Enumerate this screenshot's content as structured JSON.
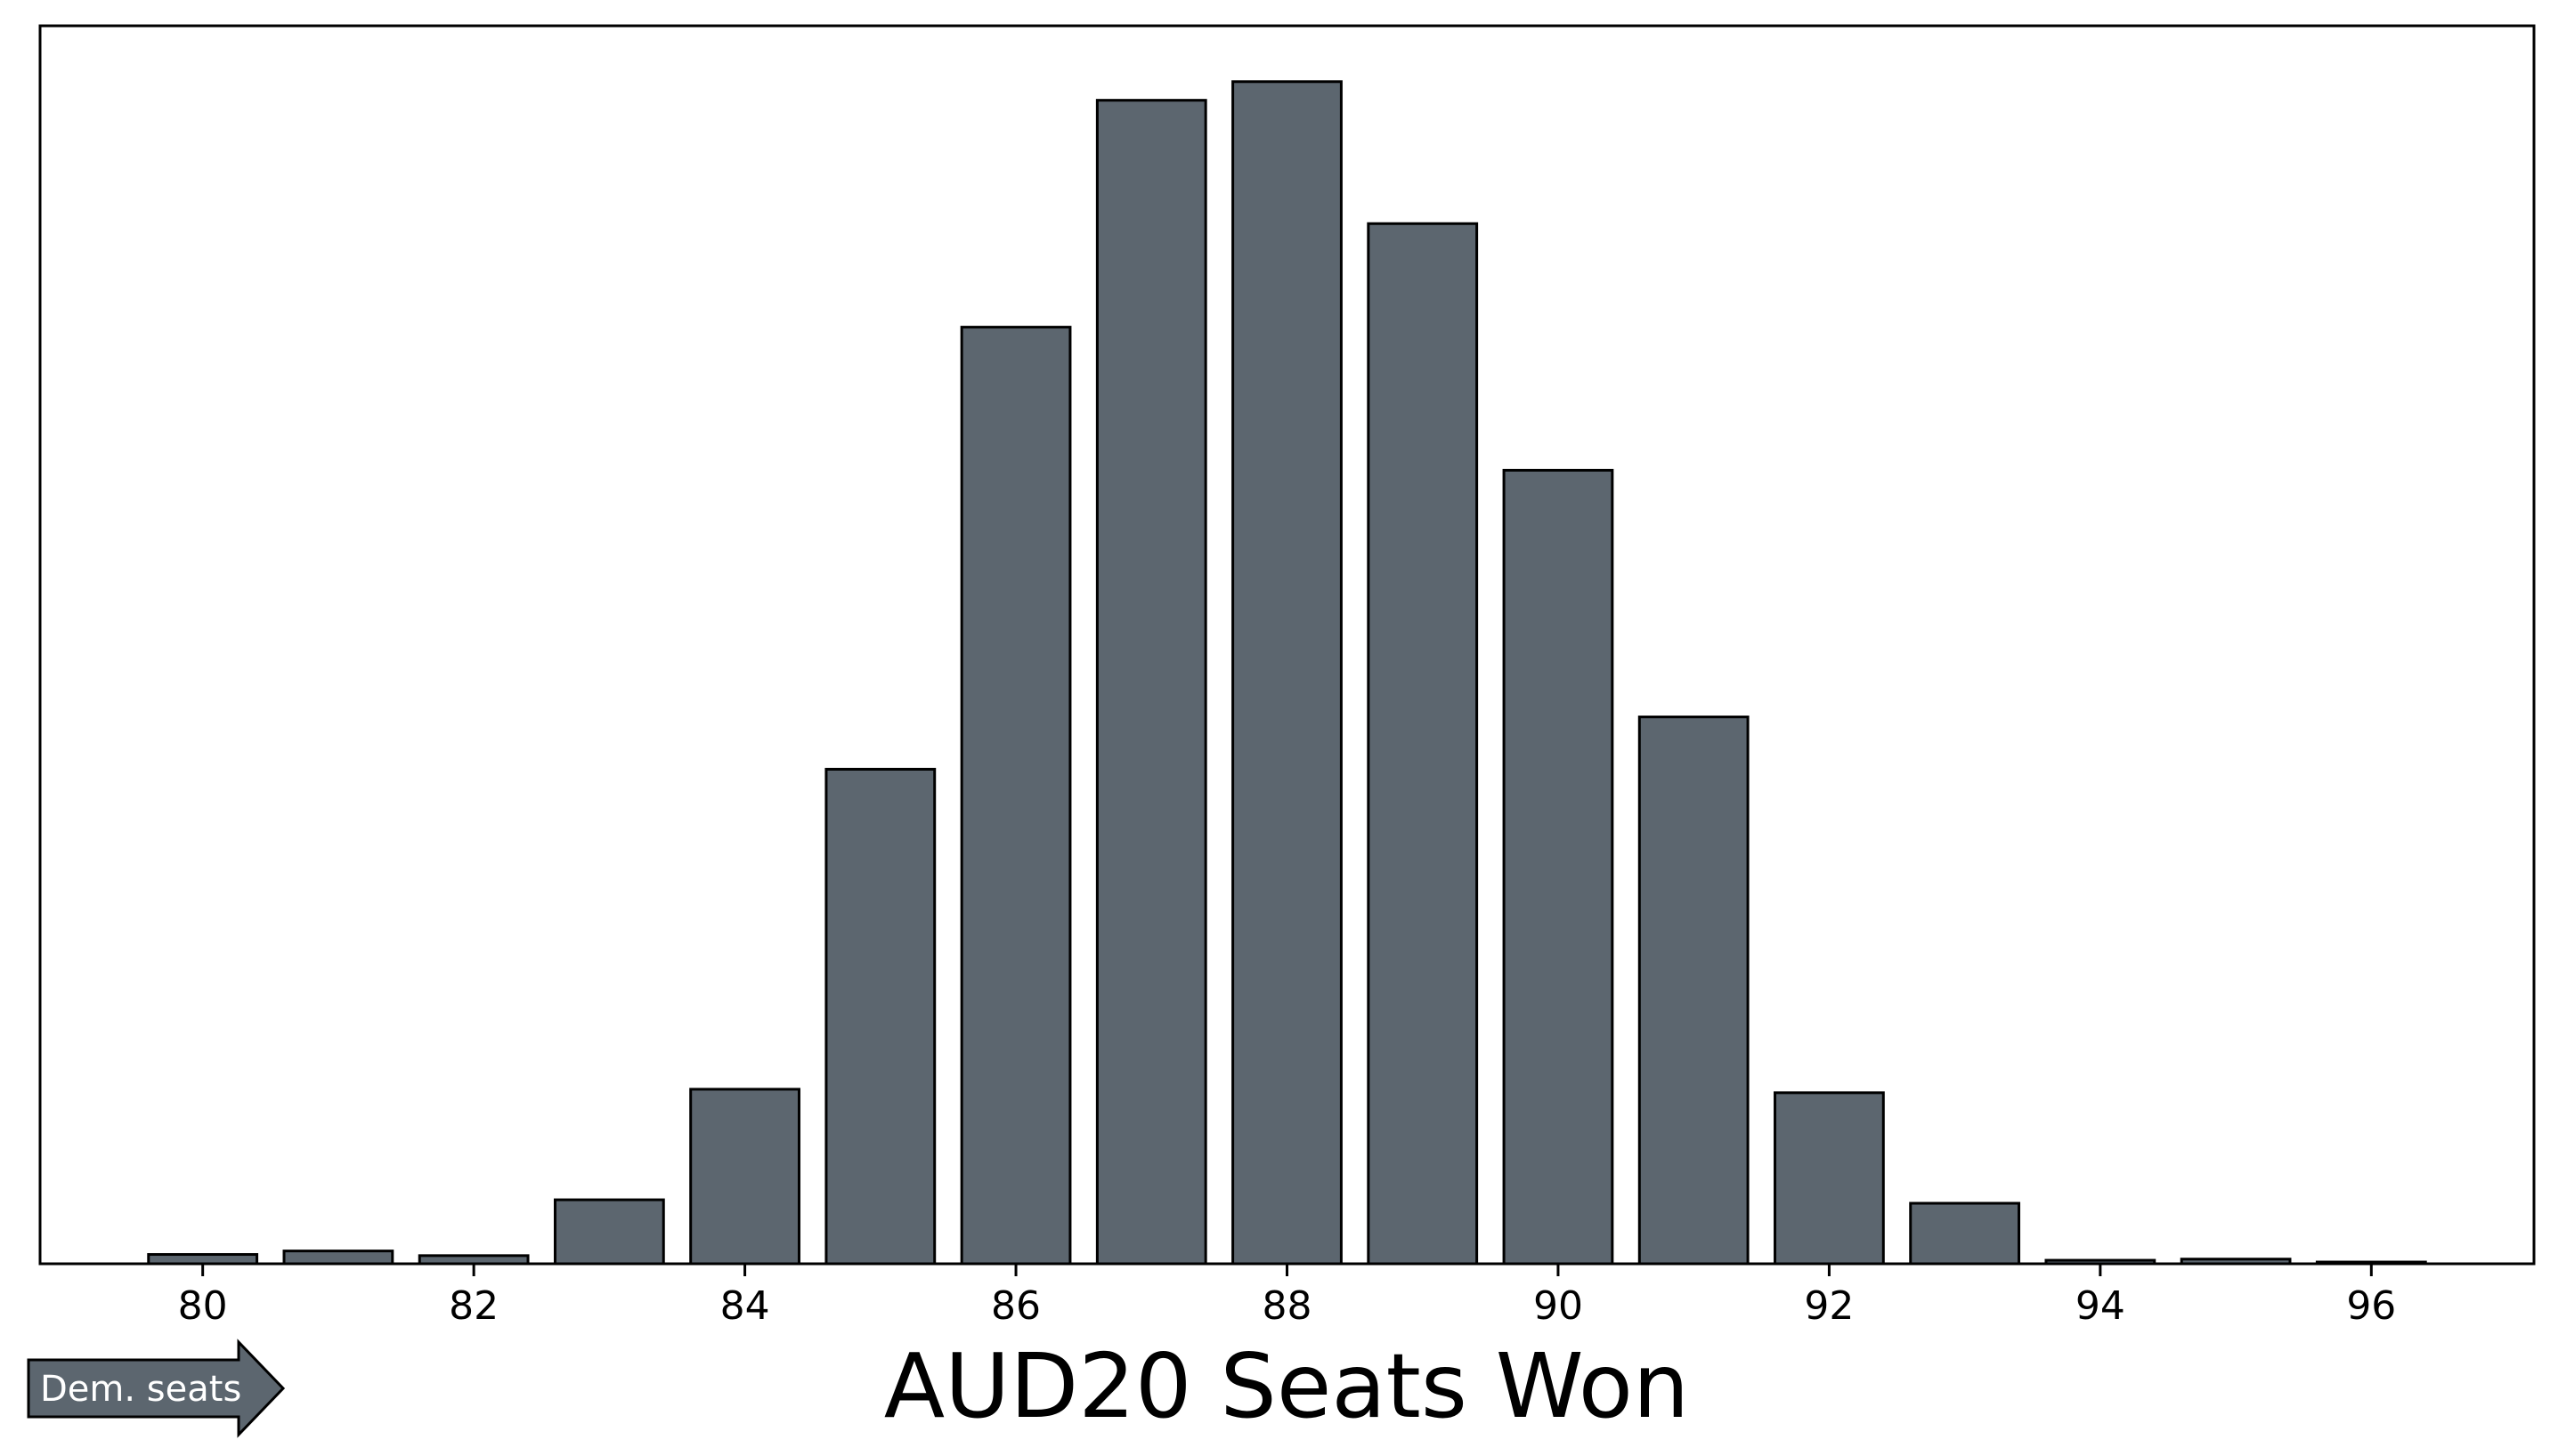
{
  "chart_data": {
    "type": "bar",
    "x": [
      80,
      81,
      82,
      83,
      84,
      85,
      86,
      87,
      88,
      89,
      90,
      91,
      92,
      93,
      94,
      95,
      96
    ],
    "values": [
      0.8,
      1.1,
      0.7,
      5.5,
      15.0,
      42.5,
      80.5,
      100.0,
      101.6,
      89.4,
      68.2,
      47.0,
      14.7,
      5.2,
      0.3,
      0.4,
      0.15
    ],
    "xticks": [
      "80",
      "82",
      "84",
      "86",
      "88",
      "90",
      "92",
      "94",
      "96"
    ],
    "xlabel": "AUD20 Seats Won",
    "xlim": [
      78.8,
      97.2
    ],
    "ylim": [
      0,
      106.4
    ],
    "show_yticks": false,
    "grid": false,
    "colors": {
      "bar_fill": "#5c666f",
      "bar_edge": "#000000"
    }
  },
  "annotation": {
    "label": "Dem. seats",
    "color": "#5c666f"
  }
}
